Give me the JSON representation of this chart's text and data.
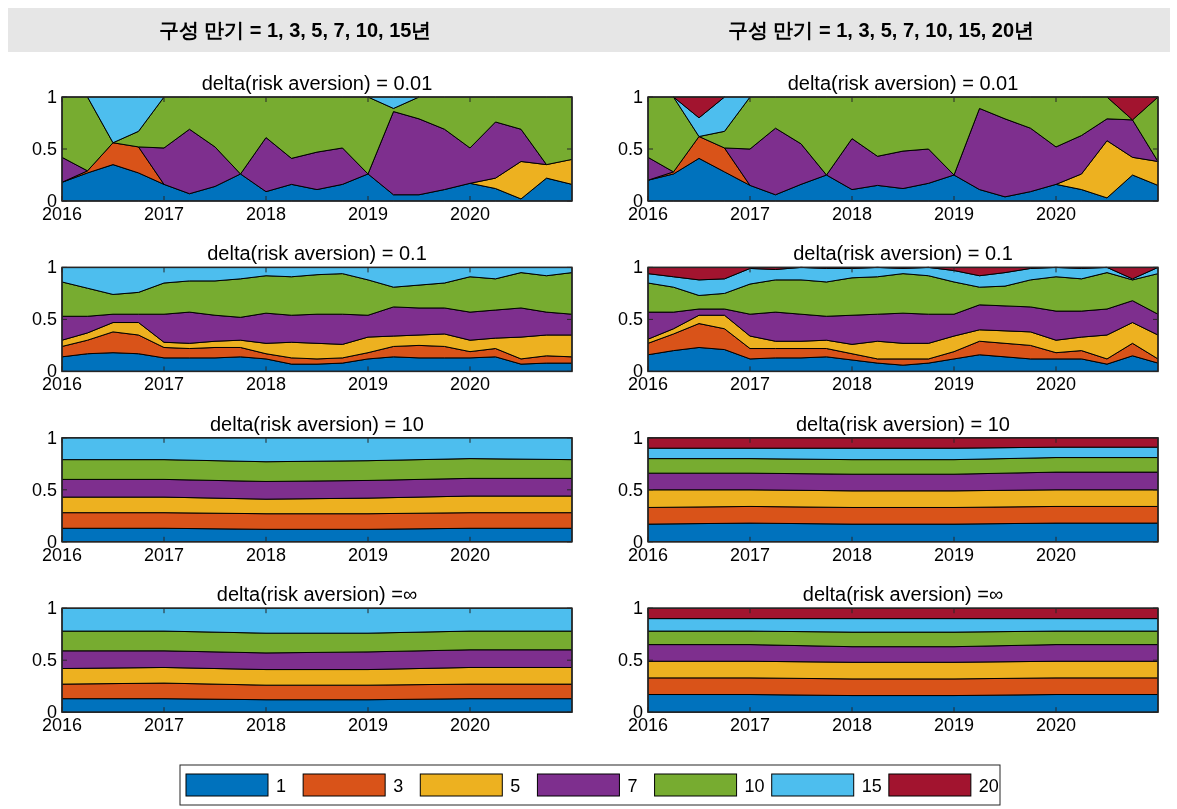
{
  "chart_data": [
    {
      "type": "area",
      "stacked": true,
      "title": "delta(risk aversion) = 0.01",
      "annotations": [
        "구성 만기 = 1, 3, 5, 7, 10, 15년"
      ],
      "x": [
        2016,
        2016.25,
        2016.5,
        2016.75,
        2017,
        2017.25,
        2017.5,
        2017.75,
        2018,
        2018.25,
        2018.5,
        2018.75,
        2019,
        2019.25,
        2019.5,
        2019.75,
        2020,
        2020.25,
        2020.5,
        2020.75,
        2021
      ],
      "xlim": [
        2016,
        2021
      ],
      "xticks": [
        2016,
        2017,
        2018,
        2019,
        2020
      ],
      "ylim": [
        0,
        1
      ],
      "yticks": [
        0,
        0.5,
        1
      ],
      "series": [
        {
          "color": "#0072bd",
          "values": [
            0.18,
            0.27,
            0.35,
            0.27,
            0.16,
            0.07,
            0.14,
            0.26,
            0.09,
            0.16,
            0.11,
            0.16,
            0.26,
            0.06,
            0.06,
            0.11,
            0.17,
            0.12,
            0.02,
            0.22,
            0.16
          ]
        },
        {
          "color": "#d95319",
          "values": [
            0,
            0.02,
            0.21,
            0.25,
            0,
            null,
            null,
            null,
            null,
            null,
            null,
            null,
            null,
            null,
            null,
            null,
            null,
            null,
            null,
            null,
            null
          ]
        },
        {
          "color": "#edb120",
          "values": [
            null,
            null,
            null,
            null,
            null,
            null,
            null,
            null,
            null,
            null,
            null,
            null,
            null,
            null,
            null,
            null,
            0,
            0.1,
            0.36,
            0.13,
            0.24
          ]
        },
        {
          "color": "#7e2f8e",
          "values": [
            0.24,
            0,
            null,
            0,
            0.35,
            0.62,
            0.38,
            0,
            0.52,
            0.25,
            0.36,
            0.35,
            0,
            0.8,
            0.73,
            0.58,
            0.34,
            0.54,
            0.31,
            0,
            null
          ]
        },
        {
          "color": "#77ac30",
          "values": [
            0.58,
            0.71,
            0,
            0.15,
            0.49,
            0.31,
            0.48,
            0.74,
            0.39,
            0.59,
            0.53,
            0.49,
            0.74,
            0.03,
            0.21,
            0.31,
            0.49,
            0.24,
            0.31,
            0.65,
            0.6
          ]
        },
        {
          "color": "#4dbeee",
          "values": [
            null,
            0,
            0.44,
            0.33,
            0,
            null,
            null,
            null,
            null,
            null,
            null,
            null,
            0,
            0.11,
            0,
            null,
            null,
            null,
            null,
            null,
            null
          ]
        }
      ]
    },
    {
      "type": "area",
      "stacked": true,
      "title": "delta(risk aversion) = 0.01",
      "annotations": [
        "구성 만기 = 1, 3, 5, 7, 10, 15, 20년"
      ],
      "x": [
        2016,
        2016.25,
        2016.5,
        2016.75,
        2017,
        2017.25,
        2017.5,
        2017.75,
        2018,
        2018.25,
        2018.5,
        2018.75,
        2019,
        2019.25,
        2019.5,
        2019.75,
        2020,
        2020.25,
        2020.5,
        2020.75,
        2021
      ],
      "xlim": [
        2016,
        2021
      ],
      "xticks": [
        2016,
        2017,
        2018,
        2019,
        2020
      ],
      "ylim": [
        0,
        1
      ],
      "yticks": [
        0,
        0.5,
        1
      ],
      "series": [
        {
          "color": "#0072bd",
          "values": [
            0.2,
            0.26,
            0.41,
            0.28,
            0.15,
            0.06,
            0.16,
            0.25,
            0.11,
            0.15,
            0.12,
            0.17,
            0.25,
            0.11,
            0.04,
            0.09,
            0.16,
            0.11,
            0.03,
            0.25,
            0.15
          ]
        },
        {
          "color": "#d95319",
          "values": [
            0,
            0.02,
            0.21,
            0.23,
            0,
            null,
            null,
            null,
            null,
            null,
            null,
            null,
            null,
            null,
            null,
            null,
            null,
            null,
            null,
            null,
            null
          ]
        },
        {
          "color": "#edb120",
          "values": [
            null,
            null,
            null,
            null,
            null,
            null,
            null,
            null,
            null,
            null,
            null,
            null,
            null,
            null,
            null,
            null,
            0,
            0.15,
            0.55,
            0.17,
            0.23
          ]
        },
        {
          "color": "#7e2f8e",
          "values": [
            0.22,
            0,
            null,
            0,
            0.35,
            0.64,
            0.39,
            0,
            0.49,
            0.28,
            0.36,
            0.33,
            0,
            0.78,
            0.75,
            0.61,
            0.36,
            0.37,
            0.21,
            0.36,
            0
          ]
        },
        {
          "color": "#77ac30",
          "values": [
            0.58,
            0.72,
            0,
            0.16,
            0.5,
            0.3,
            0.45,
            0.75,
            0.4,
            0.57,
            0.52,
            0.5,
            0.75,
            0.11,
            0.21,
            0.3,
            0.48,
            0.37,
            0.21,
            0,
            0.62
          ]
        },
        {
          "color": "#4dbeee",
          "values": [
            null,
            0,
            0.18,
            0.33,
            0,
            null,
            null,
            null,
            null,
            null,
            null,
            null,
            null,
            null,
            null,
            null,
            null,
            null,
            null,
            null,
            null
          ]
        },
        {
          "color": "#a2142f",
          "values": [
            null,
            0,
            0.2,
            0,
            null,
            null,
            null,
            null,
            null,
            null,
            null,
            null,
            null,
            null,
            null,
            null,
            null,
            null,
            0,
            0.22,
            0
          ]
        }
      ]
    },
    {
      "type": "area",
      "stacked": true,
      "title": "delta(risk aversion) = 0.1",
      "x": [
        2016,
        2016.25,
        2016.5,
        2016.75,
        2017,
        2017.25,
        2017.5,
        2017.75,
        2018,
        2018.25,
        2018.5,
        2018.75,
        2019,
        2019.25,
        2019.5,
        2019.75,
        2020,
        2020.25,
        2020.5,
        2020.75,
        2021
      ],
      "xlim": [
        2016,
        2021
      ],
      "xticks": [
        2016,
        2017,
        2018,
        2019,
        2020
      ],
      "ylim": [
        0,
        1
      ],
      "yticks": [
        0,
        0.5,
        1
      ],
      "series": [
        {
          "color": "#0072bd",
          "values": [
            0.14,
            0.17,
            0.18,
            0.17,
            0.13,
            0.13,
            0.13,
            0.14,
            0.12,
            0.07,
            0.07,
            0.08,
            0.12,
            0.14,
            0.13,
            0.13,
            0.13,
            0.14,
            0.07,
            0.08,
            0.08
          ]
        },
        {
          "color": "#d95319",
          "values": [
            0.1,
            0.13,
            0.2,
            0.18,
            0.1,
            0.09,
            0.1,
            0.09,
            0.05,
            0.06,
            0.05,
            0.05,
            0.06,
            0.1,
            0.12,
            0.11,
            0.06,
            0.08,
            0.05,
            0.07,
            0.06
          ]
        },
        {
          "color": "#edb120",
          "values": [
            0.06,
            0.07,
            0.09,
            0.12,
            0.05,
            0.05,
            0.06,
            0.07,
            0.1,
            0.15,
            0.15,
            0.13,
            0.15,
            0.1,
            0.1,
            0.12,
            0.11,
            0.1,
            0.21,
            0.2,
            0.21
          ]
        },
        {
          "color": "#7e2f8e",
          "values": [
            0.23,
            0.16,
            0.08,
            0.08,
            0.27,
            0.3,
            0.25,
            0.22,
            0.29,
            0.26,
            0.28,
            0.29,
            0.21,
            0.28,
            0.26,
            0.25,
            0.27,
            0.27,
            0.28,
            0.22,
            0.2
          ]
        },
        {
          "color": "#77ac30",
          "values": [
            0.33,
            0.27,
            0.19,
            0.21,
            0.3,
            0.3,
            0.33,
            0.37,
            0.36,
            0.37,
            0.38,
            0.39,
            0.34,
            0.19,
            0.22,
            0.24,
            0.34,
            0.3,
            0.34,
            0.35,
            0.4
          ]
        },
        {
          "color": "#4dbeee",
          "values": [
            0.14,
            0.2,
            0.26,
            0.24,
            0.15,
            0.13,
            0.13,
            0.11,
            0.08,
            0.09,
            0.07,
            0.06,
            0.12,
            0.19,
            0.17,
            0.15,
            0.09,
            0.11,
            0.05,
            0.08,
            0.05
          ]
        }
      ]
    },
    {
      "type": "area",
      "stacked": true,
      "title": "delta(risk aversion) = 0.1",
      "x": [
        2016,
        2016.25,
        2016.5,
        2016.75,
        2017,
        2017.25,
        2017.5,
        2017.75,
        2018,
        2018.25,
        2018.5,
        2018.75,
        2019,
        2019.25,
        2019.5,
        2019.75,
        2020,
        2020.25,
        2020.5,
        2020.75,
        2021
      ],
      "xlim": [
        2016,
        2021
      ],
      "xticks": [
        2016,
        2017,
        2018,
        2019,
        2020
      ],
      "ylim": [
        0,
        1
      ],
      "yticks": [
        0,
        0.5,
        1
      ],
      "series": [
        {
          "color": "#0072bd",
          "values": [
            0.16,
            0.2,
            0.23,
            0.21,
            0.12,
            0.13,
            0.13,
            0.14,
            0.11,
            0.08,
            0.06,
            0.08,
            0.12,
            0.16,
            0.14,
            0.12,
            0.12,
            0.12,
            0.07,
            0.15,
            0.08
          ]
        },
        {
          "color": "#d95319",
          "values": [
            0.11,
            0.16,
            0.23,
            0.2,
            0.1,
            0.09,
            0.09,
            0.08,
            0.06,
            0.04,
            0.06,
            0.04,
            0.07,
            0.13,
            0.13,
            0.13,
            0.06,
            0.08,
            0.05,
            0.12,
            0.04
          ]
        },
        {
          "color": "#edb120",
          "values": [
            0.04,
            0.05,
            0.08,
            0.13,
            0.12,
            0.07,
            0.07,
            0.08,
            0.09,
            0.17,
            0.15,
            0.15,
            0.15,
            0.11,
            0.12,
            0.13,
            0.12,
            0.13,
            0.23,
            0.2,
            0.23
          ]
        },
        {
          "color": "#7e2f8e",
          "values": [
            0.26,
            0.16,
            0.06,
            0.06,
            0.21,
            0.28,
            0.26,
            0.23,
            0.28,
            0.26,
            0.29,
            0.28,
            0.21,
            0.24,
            0.24,
            0.24,
            0.28,
            0.25,
            0.25,
            0.21,
            0.2
          ]
        },
        {
          "color": "#77ac30",
          "values": [
            0.28,
            0.24,
            0.13,
            0.15,
            0.29,
            0.31,
            0.33,
            0.33,
            0.36,
            0.36,
            0.38,
            0.37,
            0.31,
            0.17,
            0.19,
            0.26,
            0.33,
            0.31,
            0.35,
            0.2,
            0.39
          ]
        },
        {
          "color": "#4dbeee",
          "values": [
            0.09,
            0.1,
            0.15,
            0.14,
            0.15,
            0.1,
            0.12,
            0.13,
            0.09,
            0.09,
            0.05,
            0.08,
            0.11,
            0.11,
            0.13,
            0.11,
            0.09,
            0.1,
            0.05,
            0.01,
            0.06
          ]
        },
        {
          "color": "#a2142f",
          "values": [
            0.06,
            0.09,
            0.12,
            0.11,
            0.01,
            0.02,
            0,
            0.01,
            0.01,
            0,
            0.01,
            0,
            0.03,
            0.08,
            0.05,
            0.01,
            0,
            0.01,
            0,
            0.11,
            0
          ]
        }
      ]
    },
    {
      "type": "area",
      "stacked": true,
      "title": "delta(risk aversion) = 10",
      "x": [
        2016,
        2017,
        2018,
        2019,
        2020,
        2021
      ],
      "xlim": [
        2016,
        2021
      ],
      "xticks": [
        2016,
        2017,
        2018,
        2019,
        2020
      ],
      "ylim": [
        0,
        1
      ],
      "yticks": [
        0,
        0.5,
        1
      ],
      "series": [
        {
          "color": "#0072bd",
          "values": [
            0.13,
            0.13,
            0.12,
            0.12,
            0.13,
            0.13
          ]
        },
        {
          "color": "#d95319",
          "values": [
            0.15,
            0.15,
            0.15,
            0.15,
            0.15,
            0.15
          ]
        },
        {
          "color": "#edb120",
          "values": [
            0.15,
            0.15,
            0.14,
            0.15,
            0.16,
            0.16
          ]
        },
        {
          "color": "#7e2f8e",
          "values": [
            0.17,
            0.17,
            0.17,
            0.17,
            0.17,
            0.17
          ]
        },
        {
          "color": "#77ac30",
          "values": [
            0.19,
            0.19,
            0.19,
            0.19,
            0.19,
            0.18
          ]
        },
        {
          "color": "#4dbeee",
          "values": [
            0.21,
            0.21,
            0.23,
            0.22,
            0.2,
            0.21
          ]
        }
      ]
    },
    {
      "type": "area",
      "stacked": true,
      "title": "delta(risk aversion) = 10",
      "x": [
        2016,
        2017,
        2018,
        2019,
        2020,
        2021
      ],
      "xlim": [
        2016,
        2021
      ],
      "xticks": [
        2016,
        2017,
        2018,
        2019,
        2020
      ],
      "ylim": [
        0,
        1
      ],
      "yticks": [
        0,
        0.5,
        1
      ],
      "series": [
        {
          "color": "#0072bd",
          "values": [
            0.17,
            0.18,
            0.17,
            0.17,
            0.18,
            0.18
          ]
        },
        {
          "color": "#d95319",
          "values": [
            0.16,
            0.16,
            0.16,
            0.16,
            0.16,
            0.16
          ]
        },
        {
          "color": "#edb120",
          "values": [
            0.17,
            0.16,
            0.16,
            0.16,
            0.16,
            0.16
          ]
        },
        {
          "color": "#7e2f8e",
          "values": [
            0.16,
            0.16,
            0.16,
            0.16,
            0.17,
            0.17
          ]
        },
        {
          "color": "#77ac30",
          "values": [
            0.14,
            0.14,
            0.14,
            0.14,
            0.14,
            0.14
          ]
        },
        {
          "color": "#4dbeee",
          "values": [
            0.1,
            0.1,
            0.11,
            0.11,
            0.1,
            0.1
          ]
        },
        {
          "color": "#a2142f",
          "values": [
            0.1,
            0.1,
            0.1,
            0.1,
            0.09,
            0.09
          ]
        }
      ]
    },
    {
      "type": "area",
      "stacked": true,
      "title": "delta(risk aversion) =∞",
      "x": [
        2016,
        2017,
        2018,
        2019,
        2020,
        2021
      ],
      "xlim": [
        2016,
        2021
      ],
      "xticks": [
        2016,
        2017,
        2018,
        2019,
        2020
      ],
      "ylim": [
        0,
        1
      ],
      "yticks": [
        0,
        0.5,
        1
      ],
      "series": [
        {
          "color": "#0072bd",
          "values": [
            0.13,
            0.13,
            0.12,
            0.12,
            0.13,
            0.13
          ]
        },
        {
          "color": "#d95319",
          "values": [
            0.14,
            0.15,
            0.14,
            0.14,
            0.14,
            0.14
          ]
        },
        {
          "color": "#edb120",
          "values": [
            0.15,
            0.15,
            0.15,
            0.15,
            0.16,
            0.16
          ]
        },
        {
          "color": "#7e2f8e",
          "values": [
            0.17,
            0.16,
            0.16,
            0.17,
            0.17,
            0.17
          ]
        },
        {
          "color": "#77ac30",
          "values": [
            0.19,
            0.19,
            0.19,
            0.18,
            0.18,
            0.18
          ]
        },
        {
          "color": "#4dbeee",
          "values": [
            0.22,
            0.22,
            0.24,
            0.24,
            0.22,
            0.22
          ]
        }
      ]
    },
    {
      "type": "area",
      "stacked": true,
      "title": "delta(risk aversion) =∞",
      "legend": "bottom",
      "x": [
        2016,
        2017,
        2018,
        2019,
        2020,
        2021
      ],
      "xlim": [
        2016,
        2021
      ],
      "xticks": [
        2016,
        2017,
        2018,
        2019,
        2020
      ],
      "ylim": [
        0,
        1
      ],
      "yticks": [
        0,
        0.5,
        1
      ],
      "series": [
        {
          "name": "1",
          "color": "#0072bd",
          "values": [
            0.17,
            0.17,
            0.16,
            0.16,
            0.17,
            0.17
          ]
        },
        {
          "name": "3",
          "color": "#d95319",
          "values": [
            0.16,
            0.16,
            0.16,
            0.16,
            0.16,
            0.16
          ]
        },
        {
          "name": "5",
          "color": "#edb120",
          "values": [
            0.16,
            0.16,
            0.16,
            0.16,
            0.16,
            0.16
          ]
        },
        {
          "name": "7",
          "color": "#7e2f8e",
          "values": [
            0.16,
            0.16,
            0.15,
            0.15,
            0.16,
            0.16
          ]
        },
        {
          "name": "10",
          "color": "#77ac30",
          "values": [
            0.13,
            0.13,
            0.14,
            0.14,
            0.13,
            0.13
          ]
        },
        {
          "name": "15",
          "color": "#4dbeee",
          "values": [
            0.12,
            0.12,
            0.13,
            0.13,
            0.12,
            0.12
          ]
        },
        {
          "name": "20",
          "color": "#a2142f",
          "values": [
            0.1,
            0.1,
            0.1,
            0.1,
            0.1,
            0.1
          ]
        }
      ]
    }
  ]
}
